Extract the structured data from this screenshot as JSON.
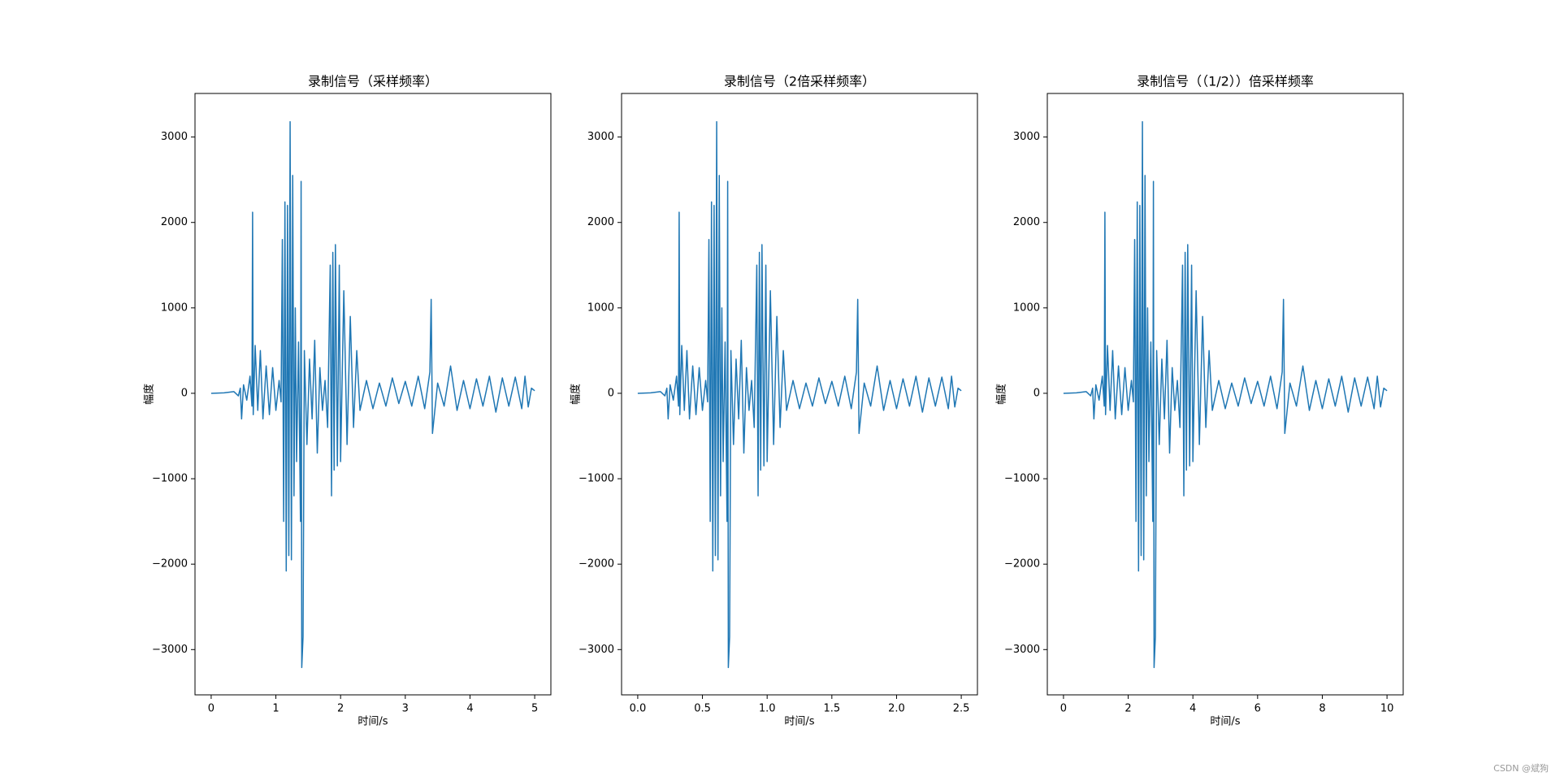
{
  "chart_data": [
    {
      "type": "line",
      "title": "录制信号（采样频率）",
      "xlabel": "时间/s",
      "ylabel": "幅度",
      "series": [
        {
          "color": "#1f77b4",
          "x": [
            0,
            0.2,
            0.35,
            0.42,
            0.45,
            0.47,
            0.5,
            0.55,
            0.6,
            0.63,
            0.64,
            0.65,
            0.68,
            0.72,
            0.76,
            0.8,
            0.85,
            0.9,
            0.95,
            1.0,
            1.05,
            1.08,
            1.1,
            1.12,
            1.14,
            1.16,
            1.18,
            1.2,
            1.22,
            1.24,
            1.26,
            1.28,
            1.3,
            1.32,
            1.35,
            1.38,
            1.39,
            1.4,
            1.42,
            1.44,
            1.48,
            1.52,
            1.56,
            1.6,
            1.64,
            1.68,
            1.72,
            1.76,
            1.8,
            1.84,
            1.86,
            1.88,
            1.9,
            1.92,
            1.95,
            1.98,
            2.0,
            2.05,
            2.1,
            2.15,
            2.2,
            2.25,
            2.3,
            2.4,
            2.5,
            2.6,
            2.7,
            2.8,
            2.9,
            3.0,
            3.1,
            3.2,
            3.3,
            3.38,
            3.4,
            3.42,
            3.5,
            3.6,
            3.7,
            3.8,
            3.9,
            4.0,
            4.1,
            4.2,
            4.3,
            4.4,
            4.5,
            4.6,
            4.7,
            4.8,
            4.85,
            4.9,
            4.95,
            5.0
          ],
          "values": [
            0,
            5,
            20,
            -30,
            60,
            -300,
            100,
            -80,
            200,
            -150,
            2120,
            -250,
            560,
            -200,
            500,
            -300,
            320,
            -250,
            300,
            -200,
            150,
            -100,
            1800,
            -1500,
            2240,
            -2080,
            2200,
            -1900,
            3180,
            -1950,
            2550,
            -1200,
            1000,
            -800,
            600,
            -1500,
            2480,
            -3210,
            -2850,
            500,
            -600,
            400,
            -300,
            620,
            -700,
            300,
            -200,
            150,
            -400,
            1500,
            -1200,
            1650,
            -900,
            1740,
            -850,
            1500,
            -800,
            1200,
            -600,
            900,
            -400,
            500,
            -200,
            150,
            -180,
            120,
            -150,
            180,
            -120,
            140,
            -150,
            200,
            -180,
            250,
            1100,
            -470,
            120,
            -150,
            320,
            -200,
            150,
            -180,
            170,
            -150,
            200,
            -220,
            180,
            -150,
            190,
            -180,
            200,
            -160,
            60,
            30
          ]
        }
      ],
      "xlim": [
        -0.25,
        5.25
      ],
      "xticks": [
        0,
        1,
        2,
        3,
        4,
        5
      ],
      "ylim": [
        -3530,
        3510
      ],
      "yticks": [
        {
          "value": -3000,
          "label": "−3000"
        },
        {
          "value": -2000,
          "label": "−2000"
        },
        {
          "value": -1000,
          "label": "−1000"
        },
        0,
        1000,
        2000,
        3000
      ]
    },
    {
      "type": "line",
      "title": "录制信号（2倍采样频率）",
      "xlabel": "时间/s",
      "ylabel": "幅度",
      "series": [
        {
          "color": "#1f77b4",
          "x": [
            0,
            0.1,
            0.175,
            0.21,
            0.225,
            0.235,
            0.25,
            0.275,
            0.3,
            0.315,
            0.32,
            0.325,
            0.34,
            0.36,
            0.38,
            0.4,
            0.425,
            0.45,
            0.475,
            0.5,
            0.525,
            0.54,
            0.55,
            0.56,
            0.57,
            0.58,
            0.59,
            0.6,
            0.61,
            0.62,
            0.63,
            0.64,
            0.65,
            0.66,
            0.675,
            0.69,
            0.695,
            0.7,
            0.71,
            0.72,
            0.74,
            0.76,
            0.78,
            0.8,
            0.82,
            0.84,
            0.86,
            0.88,
            0.9,
            0.92,
            0.93,
            0.94,
            0.95,
            0.96,
            0.975,
            0.99,
            1.0,
            1.025,
            1.05,
            1.075,
            1.1,
            1.125,
            1.15,
            1.2,
            1.25,
            1.3,
            1.35,
            1.4,
            1.45,
            1.5,
            1.55,
            1.6,
            1.65,
            1.69,
            1.7,
            1.71,
            1.75,
            1.8,
            1.85,
            1.9,
            1.95,
            2.0,
            2.05,
            2.1,
            2.15,
            2.2,
            2.25,
            2.3,
            2.35,
            2.4,
            2.425,
            2.45,
            2.475,
            2.5
          ],
          "values": [
            0,
            5,
            20,
            -30,
            60,
            -300,
            100,
            -80,
            200,
            -150,
            2120,
            -250,
            560,
            -200,
            500,
            -300,
            320,
            -250,
            300,
            -200,
            150,
            -100,
            1800,
            -1500,
            2240,
            -2080,
            2200,
            -1900,
            3180,
            -1950,
            2550,
            -1200,
            1000,
            -800,
            600,
            -1500,
            2480,
            -3210,
            -2850,
            500,
            -600,
            400,
            -300,
            620,
            -700,
            300,
            -200,
            150,
            -400,
            1500,
            -1200,
            1650,
            -900,
            1740,
            -850,
            1500,
            -800,
            1200,
            -600,
            900,
            -400,
            500,
            -200,
            150,
            -180,
            120,
            -150,
            180,
            -120,
            140,
            -150,
            200,
            -180,
            250,
            1100,
            -470,
            120,
            -150,
            320,
            -200,
            150,
            -180,
            170,
            -150,
            200,
            -220,
            180,
            -150,
            190,
            -180,
            200,
            -160,
            60,
            30
          ]
        }
      ],
      "xlim": [
        -0.125,
        2.625
      ],
      "xticks": [
        {
          "value": 0,
          "label": "0.0"
        },
        0.5,
        {
          "value": 1,
          "label": "1.0"
        },
        1.5,
        {
          "value": 2,
          "label": "2.0"
        },
        2.5
      ],
      "ylim": [
        -3530,
        3510
      ],
      "yticks": [
        {
          "value": -3000,
          "label": "−3000"
        },
        {
          "value": -2000,
          "label": "−2000"
        },
        {
          "value": -1000,
          "label": "−1000"
        },
        0,
        1000,
        2000,
        3000
      ]
    },
    {
      "type": "line",
      "title": "录制信号（（1/2））倍采样频率",
      "xlabel": "时间/s",
      "ylabel": "幅度",
      "series": [
        {
          "color": "#1f77b4",
          "x": [
            0,
            0.4,
            0.7,
            0.84,
            0.9,
            0.94,
            1,
            1.1,
            1.2,
            1.26,
            1.28,
            1.3,
            1.36,
            1.44,
            1.52,
            1.6,
            1.7,
            1.8,
            1.9,
            2,
            2.1,
            2.16,
            2.2,
            2.24,
            2.28,
            2.32,
            2.36,
            2.4,
            2.44,
            2.48,
            2.52,
            2.56,
            2.6,
            2.64,
            2.7,
            2.76,
            2.78,
            2.8,
            2.84,
            2.88,
            2.96,
            3.04,
            3.12,
            3.2,
            3.28,
            3.36,
            3.44,
            3.52,
            3.6,
            3.68,
            3.72,
            3.76,
            3.8,
            3.84,
            3.9,
            3.96,
            4,
            4.1,
            4.2,
            4.3,
            4.4,
            4.5,
            4.6,
            4.8,
            5,
            5.2,
            5.4,
            5.6,
            5.8,
            6,
            6.2,
            6.4,
            6.6,
            6.76,
            6.8,
            6.84,
            7,
            7.2,
            7.4,
            7.6,
            7.8,
            8,
            8.2,
            8.4,
            8.6,
            8.8,
            9,
            9.2,
            9.4,
            9.6,
            9.7,
            9.8,
            9.9,
            10
          ],
          "values": [
            0,
            5,
            20,
            -30,
            60,
            -300,
            100,
            -80,
            200,
            -150,
            2120,
            -250,
            560,
            -200,
            500,
            -300,
            320,
            -250,
            300,
            -200,
            150,
            -100,
            1800,
            -1500,
            2240,
            -2080,
            2200,
            -1900,
            3180,
            -1950,
            2550,
            -1200,
            1000,
            -800,
            600,
            -1500,
            2480,
            -3210,
            -2850,
            500,
            -600,
            400,
            -300,
            620,
            -700,
            300,
            -200,
            150,
            -400,
            1500,
            -1200,
            1650,
            -900,
            1740,
            -850,
            1500,
            -800,
            1200,
            -600,
            900,
            -400,
            500,
            -200,
            150,
            -180,
            120,
            -150,
            180,
            -120,
            140,
            -150,
            200,
            -180,
            250,
            1100,
            -470,
            120,
            -150,
            320,
            -200,
            150,
            -180,
            170,
            -150,
            200,
            -220,
            180,
            -150,
            190,
            -180,
            200,
            -160,
            60,
            30
          ]
        }
      ],
      "xlim": [
        -0.5,
        10.5
      ],
      "xticks": [
        0,
        2,
        4,
        6,
        8,
        10
      ],
      "ylim": [
        -3530,
        3510
      ],
      "yticks": [
        {
          "value": -3000,
          "label": "−3000"
        },
        {
          "value": -2000,
          "label": "−2000"
        },
        {
          "value": -1000,
          "label": "−1000"
        },
        0,
        1000,
        2000,
        3000
      ]
    }
  ],
  "watermark": "CSDN @斌狗"
}
